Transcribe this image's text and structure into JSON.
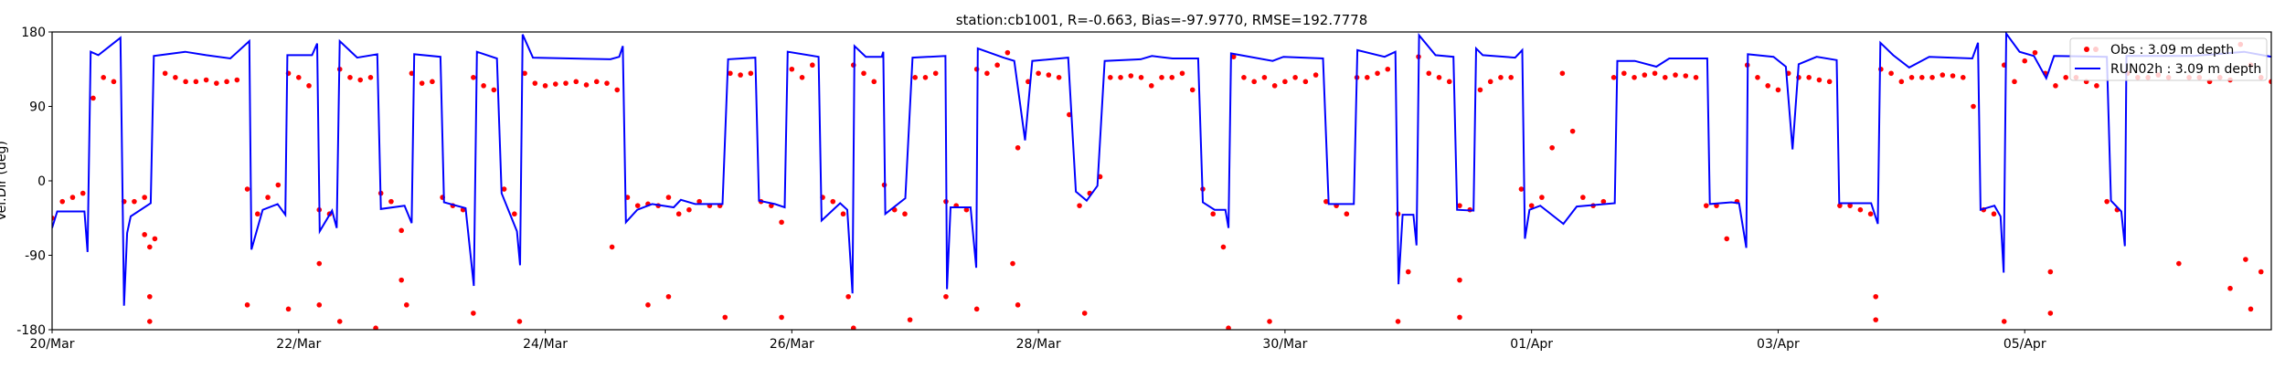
{
  "chart_data": {
    "type": "line",
    "title": "station:cb1001, R=-0.663, Bias=-97.9770, RMSE=192.7778",
    "xlabel": "",
    "ylabel": "Vel.Dir (deg)",
    "x_unit": "hours since 20/Mar 00:00",
    "xlim": [
      0,
      432
    ],
    "ylim": [
      -180,
      180
    ],
    "yticks": [
      -180,
      -90,
      0,
      90,
      180
    ],
    "ytick_labels": [
      "-180",
      "-90",
      "0",
      "90",
      "180"
    ],
    "xticks": [
      0,
      48,
      96,
      144,
      192,
      240,
      288,
      336,
      384
    ],
    "xtick_labels": [
      "20/Mar",
      "22/Mar",
      "24/Mar",
      "26/Mar",
      "28/Mar",
      "30/Mar",
      "01/Apr",
      "03/Apr",
      "05/Apr"
    ],
    "grid": false,
    "legend_position": "top-right",
    "series": [
      {
        "name": "Obs : 3.09 m depth",
        "kind": "scatter",
        "color": "#ff0000",
        "x_start": 0,
        "x_step": 2,
        "values": [
          -45,
          -25,
          -20,
          -15,
          100,
          125,
          120,
          -25,
          -25,
          -20,
          -70,
          130,
          125,
          120,
          120,
          122,
          118,
          120,
          122,
          -10,
          -40,
          -20,
          -5,
          130,
          125,
          115,
          -35,
          -40,
          135,
          125,
          122,
          125,
          -15,
          -25,
          -60,
          130,
          118,
          120,
          -20,
          -30,
          -35,
          125,
          115,
          110,
          -10,
          -40,
          130,
          118,
          115,
          117,
          118,
          120,
          116,
          120,
          118,
          110,
          -20,
          -30,
          -28,
          -30,
          -20,
          -40,
          -35,
          -25,
          -30,
          -30,
          130,
          128,
          130,
          -25,
          -30,
          -50,
          135,
          125,
          140,
          -20,
          -25,
          -40,
          140,
          130,
          120,
          -5,
          -35,
          -40,
          125,
          125,
          130,
          -25,
          -30,
          -35,
          135,
          130,
          140,
          155,
          40,
          120,
          130,
          128,
          125,
          80,
          -30,
          -15,
          5,
          125,
          125,
          127,
          125,
          115,
          125,
          125,
          130,
          110,
          -10,
          -40,
          -80,
          150,
          125,
          120,
          125,
          115,
          120,
          125,
          120,
          128,
          -25,
          -30,
          -40,
          125,
          125,
          130,
          135,
          -40,
          -110,
          150,
          130,
          125,
          120,
          -30,
          -35,
          110,
          120,
          125,
          125,
          -10,
          -30,
          -20,
          40,
          130,
          60,
          -20,
          -30,
          -25,
          125,
          130,
          125,
          128,
          130,
          125,
          128,
          127,
          125,
          -30,
          -30,
          -70,
          -25,
          140,
          125,
          115,
          110,
          130,
          125,
          125,
          122,
          120,
          -30,
          -30,
          -35,
          -40,
          135,
          130,
          120,
          125,
          125,
          125,
          128,
          127,
          125,
          90,
          -35,
          -40,
          140,
          120,
          145,
          155,
          130,
          115,
          125,
          125,
          120,
          115,
          -25,
          -35,
          130,
          125,
          125,
          128,
          125,
          -100,
          125,
          125,
          120,
          125,
          122,
          165,
          140,
          125,
          120
        ],
        "extra_points": [
          [
            18,
            -65
          ],
          [
            19,
            -80
          ],
          [
            19,
            -140
          ],
          [
            19,
            -170
          ],
          [
            38,
            -150
          ],
          [
            46,
            -155
          ],
          [
            52,
            -100
          ],
          [
            52,
            -150
          ],
          [
            56,
            -170
          ],
          [
            63,
            -178
          ],
          [
            68,
            -120
          ],
          [
            69,
            -150
          ],
          [
            82,
            -160
          ],
          [
            91,
            -170
          ],
          [
            109,
            -80
          ],
          [
            116,
            -150
          ],
          [
            120,
            -140
          ],
          [
            131,
            -165
          ],
          [
            142,
            -165
          ],
          [
            155,
            -140
          ],
          [
            156,
            -178
          ],
          [
            167,
            -168
          ],
          [
            174,
            -140
          ],
          [
            180,
            -155
          ],
          [
            187,
            -100
          ],
          [
            188,
            -150
          ],
          [
            201,
            -160
          ],
          [
            229,
            -178
          ],
          [
            237,
            -170
          ],
          [
            262,
            -170
          ],
          [
            274,
            -120
          ],
          [
            274,
            -165
          ],
          [
            355,
            -140
          ],
          [
            355,
            -168
          ],
          [
            380,
            -170
          ],
          [
            389,
            -110
          ],
          [
            389,
            -160
          ],
          [
            424,
            -130
          ],
          [
            428,
            -155
          ],
          [
            427,
            -95
          ],
          [
            430,
            -110
          ]
        ]
      },
      {
        "name": "RUN02h : 3.09 m depth",
        "kind": "line",
        "color": "#0000ff",
        "points": [
          [
            0,
            -57
          ],
          [
            1,
            -37
          ],
          [
            6.3,
            -37
          ],
          [
            6.9,
            -86
          ],
          [
            7.5,
            156
          ],
          [
            9,
            152
          ],
          [
            13.3,
            173
          ],
          [
            14,
            -151
          ],
          [
            14.6,
            -63
          ],
          [
            15.3,
            -43
          ],
          [
            19.2,
            -27
          ],
          [
            19.8,
            151
          ],
          [
            25.9,
            156
          ],
          [
            30,
            152
          ],
          [
            34.7,
            148
          ],
          [
            38.4,
            169
          ],
          [
            38.8,
            -83
          ],
          [
            41,
            -35
          ],
          [
            43.9,
            -28
          ],
          [
            45.4,
            -41
          ],
          [
            45.8,
            152
          ],
          [
            50.6,
            152
          ],
          [
            51.6,
            166
          ],
          [
            52.1,
            -61
          ],
          [
            54.5,
            -36
          ],
          [
            55.4,
            -57
          ],
          [
            56,
            169
          ],
          [
            59.4,
            149
          ],
          [
            63.3,
            153
          ],
          [
            64,
            -34
          ],
          [
            68.6,
            -30
          ],
          [
            70,
            -51
          ],
          [
            70.5,
            153
          ],
          [
            75.6,
            150
          ],
          [
            76.3,
            -26
          ],
          [
            80.5,
            -33
          ],
          [
            82.1,
            -127
          ],
          [
            82.7,
            156
          ],
          [
            86.6,
            148
          ],
          [
            87.5,
            -15
          ],
          [
            90.5,
            -61
          ],
          [
            91.1,
            -102
          ],
          [
            91.6,
            177
          ],
          [
            93.6,
            149
          ],
          [
            108.7,
            147
          ],
          [
            110.4,
            150
          ],
          [
            111.1,
            163
          ],
          [
            111.7,
            -50
          ],
          [
            113.9,
            -35
          ],
          [
            116.8,
            -28
          ],
          [
            121,
            -32
          ],
          [
            122.4,
            -23
          ],
          [
            125.2,
            -28
          ],
          [
            130.5,
            -28
          ],
          [
            131.6,
            147
          ],
          [
            136.9,
            149
          ],
          [
            137.6,
            -24
          ],
          [
            140.7,
            -28
          ],
          [
            142.6,
            -32
          ],
          [
            143.2,
            156
          ],
          [
            149.2,
            150
          ],
          [
            149.8,
            -48
          ],
          [
            153.4,
            -27
          ],
          [
            154.8,
            -35
          ],
          [
            155.8,
            -136
          ],
          [
            156.2,
            163
          ],
          [
            158.4,
            150
          ],
          [
            161.5,
            150
          ],
          [
            161.8,
            156
          ],
          [
            162.2,
            -40
          ],
          [
            166.1,
            -21
          ],
          [
            167.5,
            149
          ],
          [
            173.9,
            151
          ],
          [
            174.2,
            -131
          ],
          [
            174.9,
            -32
          ],
          [
            178.8,
            -32
          ],
          [
            179.9,
            -105
          ],
          [
            180.2,
            160
          ],
          [
            185.2,
            149
          ],
          [
            187.3,
            145
          ],
          [
            189.4,
            49
          ],
          [
            190.8,
            145
          ],
          [
            197.8,
            149
          ],
          [
            199.3,
            -13
          ],
          [
            201.4,
            -24
          ],
          [
            203.5,
            -6
          ],
          [
            204.9,
            145
          ],
          [
            211.9,
            147
          ],
          [
            214.1,
            151
          ],
          [
            218.1,
            148
          ],
          [
            223.1,
            148
          ],
          [
            224,
            -26
          ],
          [
            226.3,
            -35
          ],
          [
            228.4,
            -35
          ],
          [
            229,
            -57
          ],
          [
            229.5,
            154
          ],
          [
            237.6,
            145
          ],
          [
            239.7,
            150
          ],
          [
            247.4,
            148
          ],
          [
            248.5,
            -28
          ],
          [
            253.4,
            -28
          ],
          [
            254.1,
            158
          ],
          [
            259.4,
            150
          ],
          [
            261.5,
            156
          ],
          [
            262.1,
            -125
          ],
          [
            262.9,
            -41
          ],
          [
            265,
            -41
          ],
          [
            265.6,
            -78
          ],
          [
            266.1,
            176
          ],
          [
            269.3,
            152
          ],
          [
            272.8,
            150
          ],
          [
            273.5,
            -35
          ],
          [
            276.7,
            -36
          ],
          [
            277.2,
            160
          ],
          [
            278.5,
            152
          ],
          [
            284.8,
            149
          ],
          [
            286.2,
            158
          ],
          [
            286.7,
            -70
          ],
          [
            287.6,
            -35
          ],
          [
            289.7,
            -30
          ],
          [
            294.2,
            -52
          ],
          [
            296.8,
            -31
          ],
          [
            304.2,
            -27
          ],
          [
            304.7,
            145
          ],
          [
            308.1,
            145
          ],
          [
            312.3,
            138
          ],
          [
            314.8,
            148
          ],
          [
            322.2,
            148
          ],
          [
            322.7,
            -28
          ],
          [
            326.9,
            -26
          ],
          [
            328.4,
            -27
          ],
          [
            329.8,
            -81
          ],
          [
            330.1,
            153
          ],
          [
            335.1,
            150
          ],
          [
            337.5,
            138
          ],
          [
            338.8,
            38
          ],
          [
            340,
            141
          ],
          [
            343.5,
            150
          ],
          [
            347.4,
            146
          ],
          [
            347.9,
            -27
          ],
          [
            354.1,
            -27
          ],
          [
            355.4,
            -52
          ],
          [
            355.9,
            167
          ],
          [
            358.4,
            152
          ],
          [
            361.5,
            137
          ],
          [
            365.4,
            150
          ],
          [
            373.8,
            148
          ],
          [
            374.9,
            167
          ],
          [
            375.4,
            -35
          ],
          [
            378.1,
            -30
          ],
          [
            379.3,
            -43
          ],
          [
            379.9,
            -111
          ],
          [
            380.4,
            178
          ],
          [
            383,
            156
          ],
          [
            385.8,
            151
          ],
          [
            388.2,
            124
          ],
          [
            389.7,
            151
          ],
          [
            400,
            150
          ],
          [
            400.8,
            -24
          ],
          [
            402.8,
            -37
          ],
          [
            403.5,
            -79
          ],
          [
            403.8,
            151
          ],
          [
            416.9,
            151
          ],
          [
            426.7,
            156
          ],
          [
            432,
            150
          ]
        ]
      }
    ]
  }
}
